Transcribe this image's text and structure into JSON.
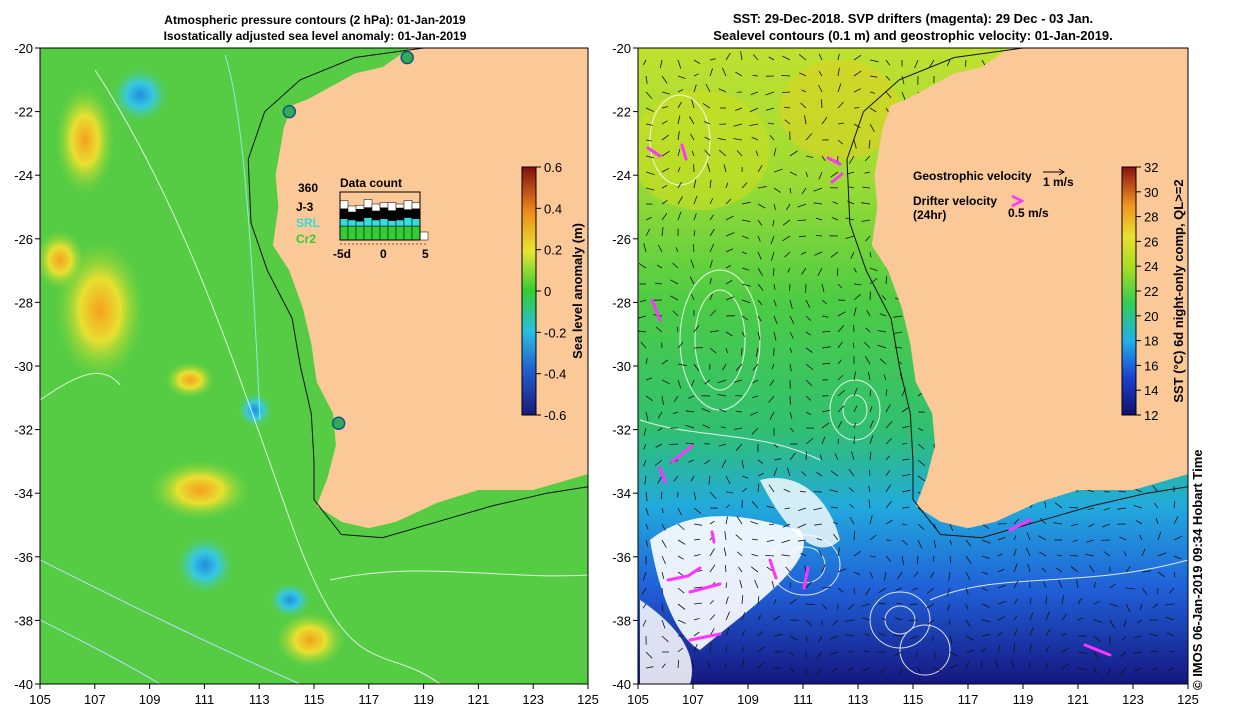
{
  "left_title": {
    "line1": "Atmospheric pressure contours (2 hPa): 01-Jan-2019",
    "line2": "Isostatically adjusted sea level anomaly: 01-Jan-2019"
  },
  "right_title": {
    "line1": "SST: 29-Dec-2018. SVP drifters (magenta): 29 Dec - 03 Jan.",
    "line2": "Sealevel contours (0.1 m) and geostrophic velocity: 01-Jan-2019."
  },
  "data_count": {
    "title": "Data count",
    "max": "360",
    "series": [
      "J-3",
      "SRL",
      "Cr2"
    ],
    "series_colors": [
      "#000000",
      "#33dddd",
      "#33cc33"
    ],
    "axis_ticks": [
      "-5d",
      "0",
      "5"
    ]
  },
  "legend_right": {
    "geo": "Geostrophic velocity",
    "geo_scale": "1 m/s",
    "drifter": "Drifter velocity",
    "drifter_sub": "(24hr)",
    "drifter_scale": "0.5 m/s"
  },
  "credit": "© IMOS 06-Jan-2019 09:34 Hobart Time",
  "colors": {
    "land": "#fbc898",
    "drifter": "#ff33ff",
    "coast": "#222222"
  },
  "chart_data": [
    {
      "type": "heatmap",
      "title": "Isostatically adjusted sea level anomaly",
      "xlabel": "",
      "ylabel": "",
      "xlim": [
        105,
        125
      ],
      "ylim": [
        -40,
        -20
      ],
      "x_ticks": [
        "105",
        "107",
        "109",
        "111",
        "113",
        "115",
        "117",
        "119",
        "121",
        "123",
        "125"
      ],
      "y_ticks": [
        "-20",
        "-22",
        "-24",
        "-26",
        "-28",
        "-30",
        "-32",
        "-34",
        "-36",
        "-38",
        "-40"
      ],
      "colorbar": {
        "label": "Sea level anomaly (m)",
        "range": [
          -0.6,
          0.6
        ],
        "ticks": [
          "0.6",
          "0.4",
          "0.2",
          "0",
          "-0.2",
          "-0.4",
          "-0.6"
        ]
      },
      "tide_gauges": [
        {
          "lon": 118.4,
          "lat": -20.3
        },
        {
          "lon": 114.1,
          "lat": -22.0
        },
        {
          "lon": 115.9,
          "lat": -31.8
        }
      ]
    },
    {
      "type": "heatmap",
      "title": "SST 6d night-only composite",
      "xlabel": "",
      "ylabel": "",
      "xlim": [
        105,
        125
      ],
      "ylim": [
        -40,
        -20
      ],
      "x_ticks": [
        "105",
        "107",
        "109",
        "111",
        "113",
        "115",
        "117",
        "119",
        "121",
        "123",
        "125"
      ],
      "y_ticks": [
        "-20",
        "-22",
        "-24",
        "-26",
        "-28",
        "-30",
        "-32",
        "-34",
        "-36",
        "-38",
        "-40"
      ],
      "colorbar": {
        "label": "SST (°C) 6d night-only comp, QL>=2",
        "range": [
          12,
          32
        ],
        "ticks": [
          "32",
          "30",
          "28",
          "26",
          "24",
          "22",
          "20",
          "18",
          "16",
          "14",
          "12"
        ]
      }
    }
  ]
}
